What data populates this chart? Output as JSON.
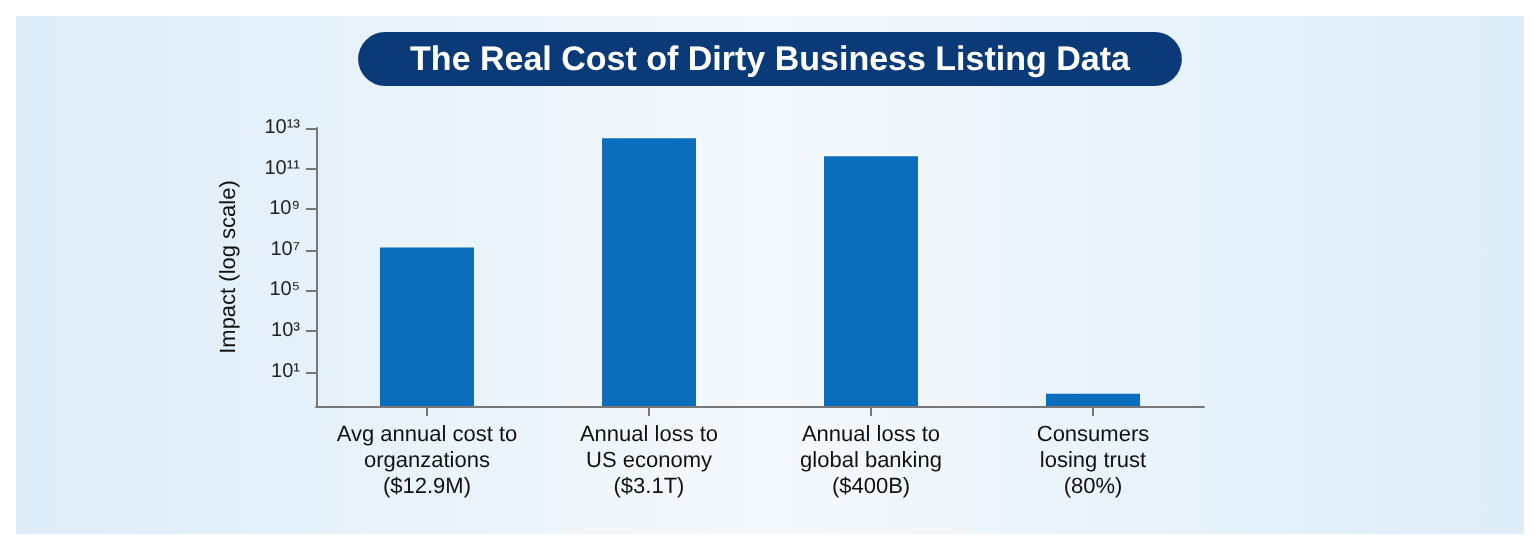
{
  "chart_data": {
    "type": "bar",
    "title": "The Real Cost of Dirty Business Listing Data",
    "ylabel": "Impact (log scale)",
    "categories": [
      "Avg annual cost to\norganzations\n($12.9M)",
      "Annual loss to\nUS economy\n($3.1T)",
      "Annual loss to\nglobal banking\n($400B)",
      "Consumers\nlosing trust\n(80%)"
    ],
    "values": [
      12900000,
      3100000000000,
      400000000000,
      0.8
    ],
    "color": "#0a6ebd",
    "log": "y",
    "ylim": [
      0.2,
      10000000000000
    ],
    "yticks": [
      {
        "value": 10,
        "label": "10¹"
      },
      {
        "value": 1000,
        "label": "10³"
      },
      {
        "value": 100000,
        "label": "10⁵"
      },
      {
        "value": 10000000,
        "label": "10⁷"
      },
      {
        "value": 1000000000,
        "label": "10⁹"
      },
      {
        "value": 100000000000,
        "label": "10¹¹"
      },
      {
        "value": 10000000000000,
        "label": "10¹³"
      }
    ],
    "grid": false
  }
}
